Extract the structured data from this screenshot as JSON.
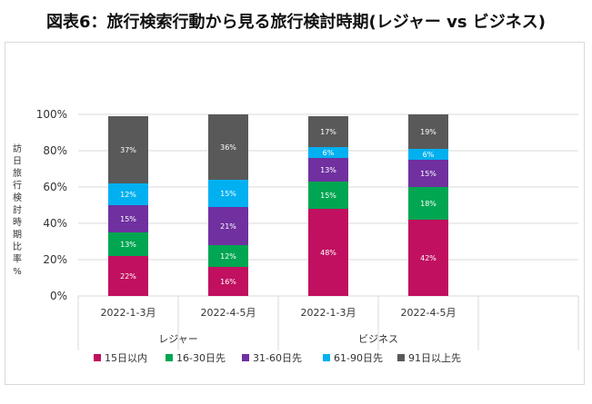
{
  "title": "図表6：旅行検索行動から見る旅行検討時期(レジャー vs ビジネス)",
  "chart_data": {
    "type": "bar",
    "stacked": true,
    "percent_stacked": true,
    "ylabel": "訪日旅行検討時期比率%",
    "ylim": [
      0,
      100
    ],
    "yticks": [
      "0%",
      "20%",
      "40%",
      "60%",
      "80%",
      "100%"
    ],
    "categories": [
      "2022-1-3月",
      "2022-4-5月",
      "2022-1-3月",
      "2022-4-5月"
    ],
    "groups": [
      {
        "label": "レジャー",
        "categories": [
          0,
          1
        ]
      },
      {
        "label": "ビジネス",
        "categories": [
          2,
          3
        ]
      }
    ],
    "grid": true,
    "legend_position": "bottom",
    "series": [
      {
        "name": "15日以内",
        "color": "#c0105f",
        "values": [
          22,
          16,
          48,
          42
        ],
        "labels": [
          "22%",
          "16%",
          "48%",
          "42%"
        ]
      },
      {
        "name": "16-30日先",
        "color": "#00a651",
        "values": [
          13,
          12,
          15,
          18
        ],
        "labels": [
          "13%",
          "12%",
          "15%",
          "18%"
        ]
      },
      {
        "name": "31-60日先",
        "color": "#7030a0",
        "values": [
          15,
          21,
          13,
          15
        ],
        "labels": [
          "15%",
          "21%",
          "13%",
          "15%"
        ]
      },
      {
        "name": "61-90日先",
        "color": "#00b0f0",
        "values": [
          12,
          15,
          6,
          6
        ],
        "labels": [
          "12%",
          "15%",
          "6%",
          "6%"
        ]
      },
      {
        "name": "91日以上先",
        "color": "#595959",
        "values": [
          37,
          36,
          17,
          19
        ],
        "labels": [
          "37%",
          "36%",
          "17%",
          "19%"
        ]
      }
    ]
  }
}
